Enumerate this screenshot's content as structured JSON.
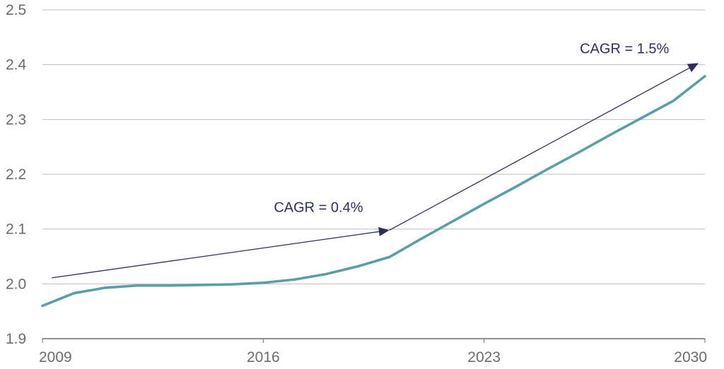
{
  "chart_data": {
    "type": "line",
    "title": "",
    "xlabel": "",
    "ylabel": "",
    "xlim": [
      2009,
      2030
    ],
    "ylim": [
      1.9,
      2.5
    ],
    "grid": "horizontal",
    "x_ticks": [
      2009,
      2016,
      2023,
      2030
    ],
    "x_tick_labels": [
      "2009",
      "2016",
      "2023",
      "2030"
    ],
    "y_ticks": [
      1.9,
      2.0,
      2.1,
      2.2,
      2.3,
      2.4,
      2.5
    ],
    "y_tick_labels": [
      "1.9",
      "2.0",
      "2.1",
      "2.2",
      "2.3",
      "2.4",
      "2.5"
    ],
    "series": [
      {
        "color": "#5b9fa6",
        "x": [
          2009,
          2010,
          2011,
          2012,
          2013,
          2014,
          2015,
          2016,
          2017,
          2018,
          2019,
          2020,
          2021,
          2022,
          2023,
          2024,
          2025,
          2026,
          2027,
          2028,
          2029,
          2030
        ],
        "y": [
          1.96,
          1.983,
          1.993,
          1.997,
          1.997,
          1.998,
          1.999,
          2.002,
          2.008,
          2.018,
          2.032,
          2.049,
          2.082,
          2.114,
          2.146,
          2.177,
          2.209,
          2.24,
          2.272,
          2.303,
          2.334,
          2.379
        ]
      }
    ],
    "annotations": [
      {
        "text": "CAGR = 0.4%",
        "from": [
          2009.3,
          2.011
        ],
        "to": [
          2020.0,
          2.098
        ],
        "label_at": [
          2017.75,
          2.14
        ],
        "color": "#2d2f5a"
      },
      {
        "text": "CAGR = 1.5%",
        "from": [
          2020.0,
          2.098
        ],
        "to": [
          2029.8,
          2.403
        ],
        "label_at": [
          2027.45,
          2.43
        ],
        "color": "#2d2f5a"
      }
    ],
    "colors": {
      "grid": "#bdbdbd",
      "axis": "#6b6b6b",
      "tick_text": "#6b6b6b",
      "annotation": "#2d2f5a"
    }
  }
}
